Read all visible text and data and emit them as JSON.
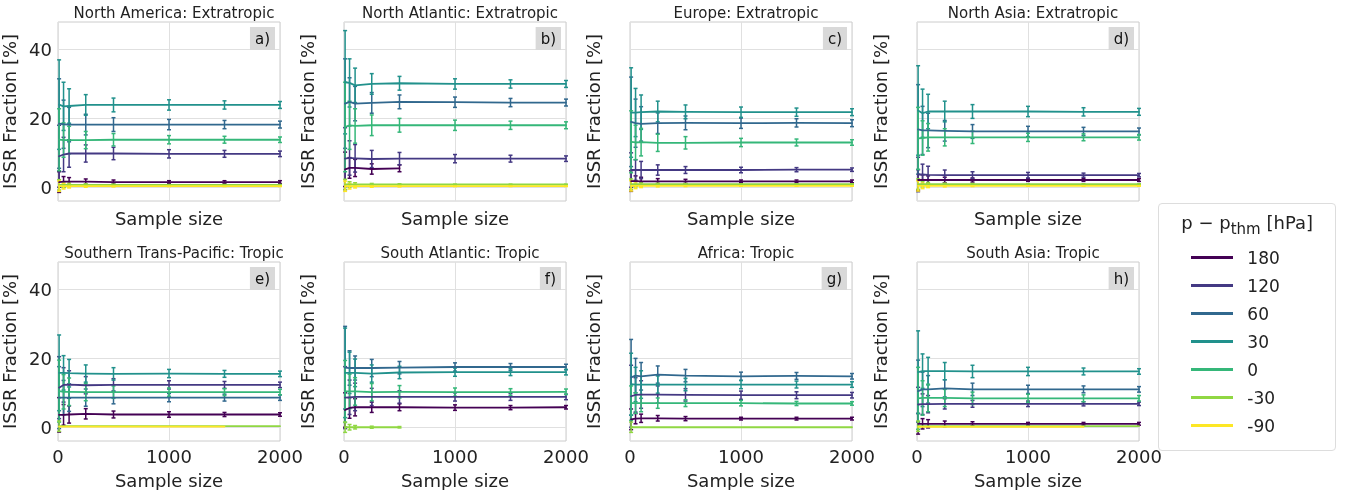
{
  "chart_data": [
    {
      "type": "line",
      "title": "North America: Extratropic",
      "xlabel": "Sample size",
      "ylabel": "ISSR Fraction [%]",
      "legend_title": "p − p$_{thm}$ [hPa]",
      "legend": "right",
      "annotations": [
        "a)"
      ],
      "x": [
        10,
        50,
        100,
        250,
        500,
        1000,
        1500,
        2000
      ],
      "xlim": [
        0,
        2000
      ],
      "xticks": [
        0,
        1000,
        2000
      ],
      "ylim": [
        -4,
        48
      ],
      "yticks": [
        0,
        20,
        40
      ],
      "grid": true,
      "marker": "none",
      "tick_labels": "y",
      "series": [
        {
          "name": "180",
          "color": "#440154",
          "values": [
            1.5,
            1.6,
            1.6,
            1.6,
            1.5,
            1.5,
            1.5,
            1.5
          ],
          "errors": [
            3,
            1.5,
            1.2,
            0.8,
            0.6,
            0.4,
            0.4,
            0.4
          ]
        },
        {
          "name": "120",
          "color": "#443983",
          "values": [
            9,
            9.5,
            9.8,
            9.8,
            9.8,
            9.7,
            9.7,
            9.7
          ],
          "errors": [
            9,
            5,
            4,
            2.5,
            1.8,
            1.2,
            1,
            0.8
          ]
        },
        {
          "name": "60",
          "color": "#31688e",
          "values": [
            18.5,
            18.3,
            18.2,
            18.2,
            18.2,
            18.2,
            18.2,
            18.2
          ],
          "errors": [
            13,
            7,
            5,
            3,
            2,
            1.5,
            1.2,
            1
          ]
        },
        {
          "name": "30",
          "color": "#21918c",
          "values": [
            24,
            23.5,
            23.6,
            23.9,
            23.9,
            23.9,
            23.9,
            23.9
          ],
          "errors": [
            13,
            7,
            5,
            3,
            2,
            1.5,
            1.2,
            1
          ]
        },
        {
          "name": "0",
          "color": "#35b779",
          "values": [
            13.8,
            13.7,
            13.7,
            13.7,
            13.8,
            13.8,
            13.8,
            13.8
          ],
          "errors": [
            9,
            5,
            4,
            2.5,
            1.8,
            1.2,
            1,
            0.8
          ]
        },
        {
          "name": "-30",
          "color": "#90d743",
          "values": [
            0.7,
            0.7,
            0.7,
            0.7,
            0.7,
            0.7,
            0.7,
            0.7
          ],
          "errors": [
            1.5,
            0.8,
            0.5,
            0.3,
            0.2,
            0.1,
            0.1,
            0.1
          ]
        },
        {
          "name": "-90",
          "color": "#fde725",
          "values": [
            0.3,
            0.3,
            0.3,
            0.3,
            0.3,
            0.3,
            0.3,
            0.3
          ],
          "errors": [
            1.5,
            0.8,
            0.5,
            0.3,
            0.2,
            0.1,
            0.1,
            0.1
          ]
        }
      ]
    },
    {
      "type": "line",
      "title": "North Atlantic: Extratropic",
      "xlabel": "Sample size",
      "ylabel": "ISSR Fraction [%]",
      "annotations": [
        "b)"
      ],
      "x": [
        10,
        50,
        100,
        250,
        500,
        1000,
        1500,
        2000
      ],
      "xlim": [
        0,
        2000
      ],
      "xticks": [
        0,
        1000,
        2000
      ],
      "ylim": [
        -4,
        48
      ],
      "yticks": [
        0,
        20,
        40
      ],
      "grid": true,
      "marker": "none",
      "tick_labels": false,
      "series": [
        {
          "name": "180",
          "color": "#440154",
          "values": [
            5.2,
            5.6,
            5.6,
            5.3,
            5.5,
            null,
            null,
            null
          ],
          "errors": [
            5,
            3,
            2.5,
            1.5,
            1,
            null,
            null,
            null
          ]
        },
        {
          "name": "120",
          "color": "#443983",
          "values": [
            8.3,
            8.5,
            8.4,
            8.2,
            8.3,
            8.3,
            8.3,
            8.3
          ],
          "errors": [
            9,
            5,
            4,
            2.5,
            1.8,
            1.2,
            1,
            0.8
          ]
        },
        {
          "name": "60",
          "color": "#31688e",
          "values": [
            24.3,
            24.8,
            24.3,
            24.5,
            24.8,
            24.7,
            24.6,
            24.6
          ],
          "errors": [
            13,
            7,
            5,
            3,
            2,
            1.5,
            1.2,
            1
          ]
        },
        {
          "name": "30",
          "color": "#21918c",
          "values": [
            30.5,
            30.3,
            29.6,
            30,
            30.2,
            30,
            30,
            30
          ],
          "errors": [
            15,
            7,
            5,
            3,
            2,
            1.5,
            1.2,
            1
          ]
        },
        {
          "name": "0",
          "color": "#35b779",
          "values": [
            17.5,
            18,
            17.8,
            18,
            18,
            18,
            18,
            18
          ],
          "errors": [
            13,
            7,
            5,
            3,
            2,
            1.5,
            1.2,
            1
          ]
        },
        {
          "name": "-30",
          "color": "#90d743",
          "values": [
            0.8,
            0.8,
            0.8,
            0.8,
            0.8,
            0.8,
            0.8,
            0.8
          ],
          "errors": [
            1.5,
            0.8,
            0.5,
            0.3,
            0.2,
            0.1,
            0.1,
            0.1
          ]
        },
        {
          "name": "-90",
          "color": "#fde725",
          "values": [
            0.3,
            0.3,
            0.3,
            0.3,
            0.3,
            0.3,
            0.3,
            0.3
          ],
          "errors": [
            1.5,
            0.8,
            0.5,
            0.3,
            0.2,
            0.1,
            0.1,
            0.1
          ]
        }
      ]
    },
    {
      "type": "line",
      "title": "Europe: Extratropic",
      "xlabel": "Sample size",
      "ylabel": "ISSR Fraction [%]",
      "annotations": [
        "c)"
      ],
      "x": [
        10,
        50,
        100,
        250,
        500,
        1000,
        1500,
        2000
      ],
      "xlim": [
        0,
        2000
      ],
      "xticks": [
        0,
        1000,
        2000
      ],
      "ylim": [
        -4,
        48
      ],
      "yticks": [
        0,
        20,
        40
      ],
      "grid": true,
      "marker": "none",
      "tick_labels": false,
      "series": [
        {
          "name": "180",
          "color": "#440154",
          "values": [
            1.8,
            1.8,
            1.7,
            1.7,
            1.7,
            1.7,
            1.7,
            1.7
          ],
          "errors": [
            3,
            1.5,
            1.2,
            0.8,
            0.6,
            0.4,
            0.4,
            0.4
          ]
        },
        {
          "name": "120",
          "color": "#443983",
          "values": [
            5,
            5,
            5,
            5,
            5,
            5,
            5.1,
            5.1
          ],
          "errors": [
            5,
            3,
            2.5,
            1.5,
            1,
            0.8,
            0.6,
            0.5
          ]
        },
        {
          "name": "60",
          "color": "#31688e",
          "values": [
            19,
            18.6,
            18.4,
            18.6,
            18.7,
            18.6,
            18.7,
            18.6
          ],
          "errors": [
            13,
            7,
            5,
            3,
            2,
            1.5,
            1.2,
            1
          ]
        },
        {
          "name": "30",
          "color": "#21918c",
          "values": [
            21.7,
            21.7,
            21.8,
            22,
            21.9,
            21.8,
            21.8,
            21.8
          ],
          "errors": [
            13,
            7,
            5,
            3,
            2,
            1.5,
            1.2,
            1
          ]
        },
        {
          "name": "0",
          "color": "#35b779",
          "values": [
            13.2,
            13,
            13.1,
            12.9,
            12.9,
            13,
            13,
            13
          ],
          "errors": [
            9,
            5,
            4,
            2.5,
            1.8,
            1.2,
            1,
            0.8
          ]
        },
        {
          "name": "-30",
          "color": "#90d743",
          "values": [
            0.9,
            0.9,
            0.9,
            0.9,
            0.9,
            0.9,
            0.9,
            0.9
          ],
          "errors": [
            1.5,
            0.8,
            0.5,
            0.3,
            0.2,
            0.1,
            0.1,
            0.1
          ]
        },
        {
          "name": "-90",
          "color": "#fde725",
          "values": [
            0.4,
            0.4,
            0.4,
            0.4,
            0.4,
            0.4,
            0.4,
            0.4
          ],
          "errors": [
            1.5,
            0.8,
            0.5,
            0.3,
            0.2,
            0.1,
            0.1,
            0.1
          ]
        }
      ]
    },
    {
      "type": "line",
      "title": "North Asia: Extratropic",
      "xlabel": "Sample size",
      "ylabel": "ISSR Fraction [%]",
      "annotations": [
        "d)"
      ],
      "x": [
        10,
        50,
        100,
        250,
        500,
        1000,
        1500,
        2000
      ],
      "xlim": [
        0,
        2000
      ],
      "xticks": [
        0,
        1000,
        2000
      ],
      "ylim": [
        -4,
        48
      ],
      "yticks": [
        0,
        20,
        40
      ],
      "grid": true,
      "marker": "none",
      "tick_labels": false,
      "series": [
        {
          "name": "180",
          "color": "#440154",
          "values": [
            2.1,
            2.1,
            2.1,
            2.1,
            2.1,
            2.1,
            2.1,
            2.1
          ],
          "errors": [
            3,
            1.5,
            1.2,
            0.8,
            0.6,
            0.4,
            0.4,
            0.4
          ]
        },
        {
          "name": "120",
          "color": "#443983",
          "values": [
            3.7,
            3.7,
            3.6,
            3.5,
            3.5,
            3.5,
            3.5,
            3.5
          ],
          "errors": [
            5,
            3,
            2.5,
            1.5,
            1,
            0.8,
            0.6,
            0.5
          ]
        },
        {
          "name": "60",
          "color": "#31688e",
          "values": [
            16.8,
            16.5,
            16.5,
            16.4,
            16.2,
            16.2,
            16.2,
            16.2
          ],
          "errors": [
            13,
            7,
            5,
            3,
            2,
            1.5,
            1.2,
            1
          ]
        },
        {
          "name": "30",
          "color": "#21918c",
          "values": [
            22.3,
            21.5,
            22,
            22,
            22,
            22,
            21.9,
            21.9
          ],
          "errors": [
            13,
            7,
            5,
            3,
            2,
            1.5,
            1.2,
            1
          ]
        },
        {
          "name": "0",
          "color": "#35b779",
          "values": [
            14.2,
            14.3,
            14.5,
            14.5,
            14.5,
            14.5,
            14.5,
            14.5
          ],
          "errors": [
            9,
            5,
            4,
            2.5,
            1.8,
            1.2,
            1,
            0.8
          ]
        },
        {
          "name": "-30",
          "color": "#90d743",
          "values": [
            0.9,
            0.9,
            0.9,
            0.9,
            0.9,
            0.9,
            0.9,
            0.9
          ],
          "errors": [
            1.5,
            0.8,
            0.5,
            0.3,
            0.2,
            0.1,
            0.1,
            0.1
          ]
        },
        {
          "name": "-90",
          "color": "#fde725",
          "values": [
            0.4,
            0.4,
            0.4,
            0.4,
            0.4,
            0.4,
            0.4,
            0.4
          ],
          "errors": [
            1.5,
            0.8,
            0.5,
            0.3,
            0.2,
            0.1,
            0.1,
            0.1
          ]
        }
      ]
    },
    {
      "type": "line",
      "title": "Southern Trans-Pacific: Tropic",
      "xlabel": "Sample size",
      "ylabel": "ISSR Fraction [%]",
      "annotations": [
        "e)"
      ],
      "x": [
        10,
        50,
        100,
        250,
        500,
        1000,
        1500,
        2000
      ],
      "xlim": [
        0,
        2000
      ],
      "xticks": [
        0,
        1000,
        2000
      ],
      "ylim": [
        -4,
        48
      ],
      "yticks": [
        0,
        20,
        40
      ],
      "grid": true,
      "marker": "none",
      "series": [
        {
          "name": "180",
          "color": "#440154",
          "values": [
            3.6,
            3.6,
            3.7,
            3.9,
            3.7,
            3.7,
            3.7,
            3.7
          ],
          "errors": [
            5,
            3,
            2.5,
            1.5,
            1,
            0.8,
            0.6,
            0.5
          ]
        },
        {
          "name": "120",
          "color": "#443983",
          "values": [
            11.5,
            12.3,
            12.4,
            12.2,
            12.3,
            12.3,
            12.3,
            12.3
          ],
          "errors": [
            9,
            5,
            4,
            2.5,
            1.8,
            1.2,
            1,
            0.8
          ]
        },
        {
          "name": "60",
          "color": "#31688e",
          "values": [
            8.6,
            8.6,
            8.6,
            8.6,
            8.6,
            8.6,
            8.6,
            8.6
          ],
          "errors": [
            9,
            5,
            4,
            2.5,
            1.8,
            1.2,
            1,
            0.8
          ]
        },
        {
          "name": "30",
          "color": "#21918c",
          "values": [
            15.8,
            15.8,
            15.7,
            15.6,
            15.5,
            15.6,
            15.5,
            15.5
          ],
          "errors": [
            11,
            5,
            4,
            2.5,
            1.8,
            1.2,
            1,
            0.8
          ]
        },
        {
          "name": "0",
          "color": "#35b779",
          "values": [
            10.5,
            10.3,
            10.3,
            10.2,
            10.2,
            10.2,
            10.2,
            10.2
          ],
          "errors": [
            9,
            5,
            4,
            2.5,
            1.8,
            1.2,
            1,
            0.8
          ]
        },
        {
          "name": "-30",
          "color": "#90d743",
          "values": [
            0.3,
            0.3,
            0.3,
            0.3,
            0.3,
            0.3,
            0.3,
            0.3
          ],
          "errors": [
            1.5,
            null,
            null,
            null,
            null,
            null,
            null,
            null
          ]
        },
        {
          "name": "-90",
          "color": "#fde725",
          "values": [
            0.2,
            0.2,
            0.2,
            0.2,
            0.2,
            0.2,
            0.2,
            null
          ]
        }
      ]
    },
    {
      "type": "line",
      "title": "South Atlantic: Tropic",
      "xlabel": "Sample size",
      "ylabel": "ISSR Fraction [%]",
      "annotations": [
        "f)"
      ],
      "x": [
        10,
        50,
        100,
        250,
        500,
        1000,
        1500,
        2000
      ],
      "xlim": [
        0,
        2000
      ],
      "xticks": [
        0,
        1000,
        2000
      ],
      "ylim": [
        -4,
        48
      ],
      "yticks": [
        0,
        20,
        40
      ],
      "grid": true,
      "marker": "none",
      "tick_labels": "x",
      "series": [
        {
          "name": "180",
          "color": "#440154",
          "values": [
            5,
            5.6,
            5.8,
            5.8,
            5.8,
            5.7,
            5.7,
            5.8
          ],
          "errors": [
            5,
            3,
            2.5,
            1.5,
            1,
            0.8,
            0.6,
            0.5
          ]
        },
        {
          "name": "120",
          "color": "#443983",
          "values": [
            8.6,
            8.7,
            8.8,
            8.8,
            8.8,
            8.8,
            8.8,
            8.8
          ],
          "errors": [
            9,
            5,
            4,
            2.5,
            1.8,
            1.2,
            1,
            0.8
          ]
        },
        {
          "name": "60",
          "color": "#31688e",
          "values": [
            17.3,
            17.2,
            17.2,
            17.2,
            17.3,
            17.5,
            17.5,
            17.5
          ],
          "errors": [
            12,
            5,
            3.5,
            2.5,
            1.8,
            1.2,
            1,
            0.8
          ]
        },
        {
          "name": "30",
          "color": "#21918c",
          "values": [
            15.8,
            15.8,
            15.8,
            15.6,
            15.9,
            16,
            16,
            16
          ],
          "errors": [
            13,
            6,
            4,
            2.5,
            1.8,
            1.2,
            1,
            0.8
          ]
        },
        {
          "name": "0",
          "color": "#35b779",
          "values": [
            10.4,
            10.4,
            10.4,
            10.2,
            10.3,
            10.2,
            10.2,
            10.3
          ],
          "errors": [
            9,
            5,
            4,
            2.5,
            1.8,
            1.2,
            1,
            0.8
          ]
        },
        {
          "name": "-30",
          "color": "#90d743",
          "values": [
            0,
            0,
            0,
            0,
            0,
            null,
            null,
            null
          ],
          "errors": [
            1.5,
            0.8,
            0.5,
            0.3,
            0.2,
            null,
            null,
            null
          ]
        }
      ]
    },
    {
      "type": "line",
      "title": "Africa: Tropic",
      "xlabel": "Sample size",
      "ylabel": "ISSR Fraction [%]",
      "annotations": [
        "g)"
      ],
      "x": [
        10,
        50,
        100,
        250,
        500,
        1000,
        1500,
        2000
      ],
      "xlim": [
        0,
        2000
      ],
      "xticks": [
        0,
        1000,
        2000
      ],
      "ylim": [
        -4,
        48
      ],
      "yticks": [
        0,
        20,
        40
      ],
      "grid": true,
      "marker": "none",
      "tick_labels": "x",
      "series": [
        {
          "name": "180",
          "color": "#440154",
          "values": [
            2.3,
            2.5,
            2.6,
            2.6,
            2.5,
            2.5,
            2.5,
            2.5
          ],
          "errors": [
            3,
            1.5,
            1.2,
            0.8,
            0.6,
            0.4,
            0.4,
            0.4
          ]
        },
        {
          "name": "120",
          "color": "#443983",
          "values": [
            9,
            9.4,
            9.5,
            9.5,
            9.4,
            9.3,
            9.3,
            9.3
          ],
          "errors": [
            9,
            5,
            4,
            2.5,
            1.8,
            1.2,
            1,
            0.8
          ]
        },
        {
          "name": "60",
          "color": "#31688e",
          "values": [
            14.5,
            15,
            14.8,
            15.3,
            15,
            14.8,
            14.9,
            14.8
          ],
          "errors": [
            11,
            5,
            4,
            2.5,
            1.8,
            1.2,
            1,
            0.8
          ]
        },
        {
          "name": "30",
          "color": "#21918c",
          "values": [
            12.5,
            12.4,
            12.4,
            12.4,
            12.4,
            12.4,
            12.4,
            12.4
          ],
          "errors": [
            9,
            5,
            4,
            2.5,
            1.8,
            1.2,
            1,
            0.8
          ]
        },
        {
          "name": "0",
          "color": "#35b779",
          "values": [
            7,
            7,
            7,
            7,
            7,
            7,
            6.9,
            6.9
          ],
          "errors": [
            5,
            3,
            2.5,
            1.5,
            1,
            0.8,
            0.6,
            0.5
          ]
        },
        {
          "name": "-30",
          "color": "#90d743",
          "values": [
            0,
            0,
            0,
            0,
            0,
            0,
            0,
            0
          ],
          "errors": [
            1.5,
            null,
            null,
            null,
            null,
            null,
            null,
            null
          ]
        }
      ]
    },
    {
      "type": "line",
      "title": "South Asia: Tropic",
      "xlabel": "Sample size",
      "ylabel": "ISSR Fraction [%]",
      "annotations": [
        "h)"
      ],
      "x": [
        10,
        50,
        100,
        250,
        500,
        1000,
        1500,
        2000
      ],
      "xlim": [
        0,
        2000
      ],
      "xticks": [
        0,
        1000,
        2000
      ],
      "ylim": [
        -4,
        48
      ],
      "yticks": [
        0,
        20,
        40
      ],
      "grid": true,
      "marker": "none",
      "tick_labels": "x",
      "series": [
        {
          "name": "180",
          "color": "#440154",
          "values": [
            1,
            1,
            1,
            1,
            1,
            1,
            1,
            1
          ],
          "errors": [
            3,
            1.5,
            1.2,
            0.8,
            0.6,
            0.4,
            0.4,
            0.4
          ]
        },
        {
          "name": "120",
          "color": "#443983",
          "values": [
            6.6,
            6.7,
            6.7,
            6.8,
            6.8,
            6.8,
            6.8,
            6.8
          ],
          "errors": [
            5,
            3,
            2.5,
            1.5,
            1,
            0.8,
            0.6,
            0.5
          ]
        },
        {
          "name": "60",
          "color": "#31688e",
          "values": [
            10.5,
            11,
            11,
            11.3,
            11,
            11,
            11,
            11
          ],
          "errors": [
            9,
            5,
            4,
            2.5,
            1.8,
            1.2,
            1,
            0.8
          ]
        },
        {
          "name": "30",
          "color": "#21918c",
          "values": [
            16,
            16.3,
            16.3,
            16.3,
            16.2,
            16.2,
            16.2,
            16.2
          ],
          "errors": [
            12,
            5,
            4,
            2.5,
            1.8,
            1.2,
            1,
            0.8
          ]
        },
        {
          "name": "0",
          "color": "#35b779",
          "values": [
            8.4,
            8.5,
            8.5,
            8.5,
            8.4,
            8.4,
            8.4,
            8.4
          ],
          "errors": [
            9,
            5,
            4,
            2.5,
            1.8,
            1.2,
            1,
            0.8
          ]
        },
        {
          "name": "-30",
          "color": "#90d743",
          "values": [
            0.3,
            0.3,
            0.3,
            0.3,
            0.3,
            0.3,
            0.3,
            0.3
          ],
          "errors": [
            1.5,
            null,
            null,
            null,
            null,
            null,
            null,
            null
          ]
        },
        {
          "name": "-90",
          "color": "#fde725",
          "values": [
            0.1,
            0.1,
            0.1,
            0.1,
            0.1,
            0.1,
            0.1,
            null
          ]
        }
      ]
    }
  ]
}
